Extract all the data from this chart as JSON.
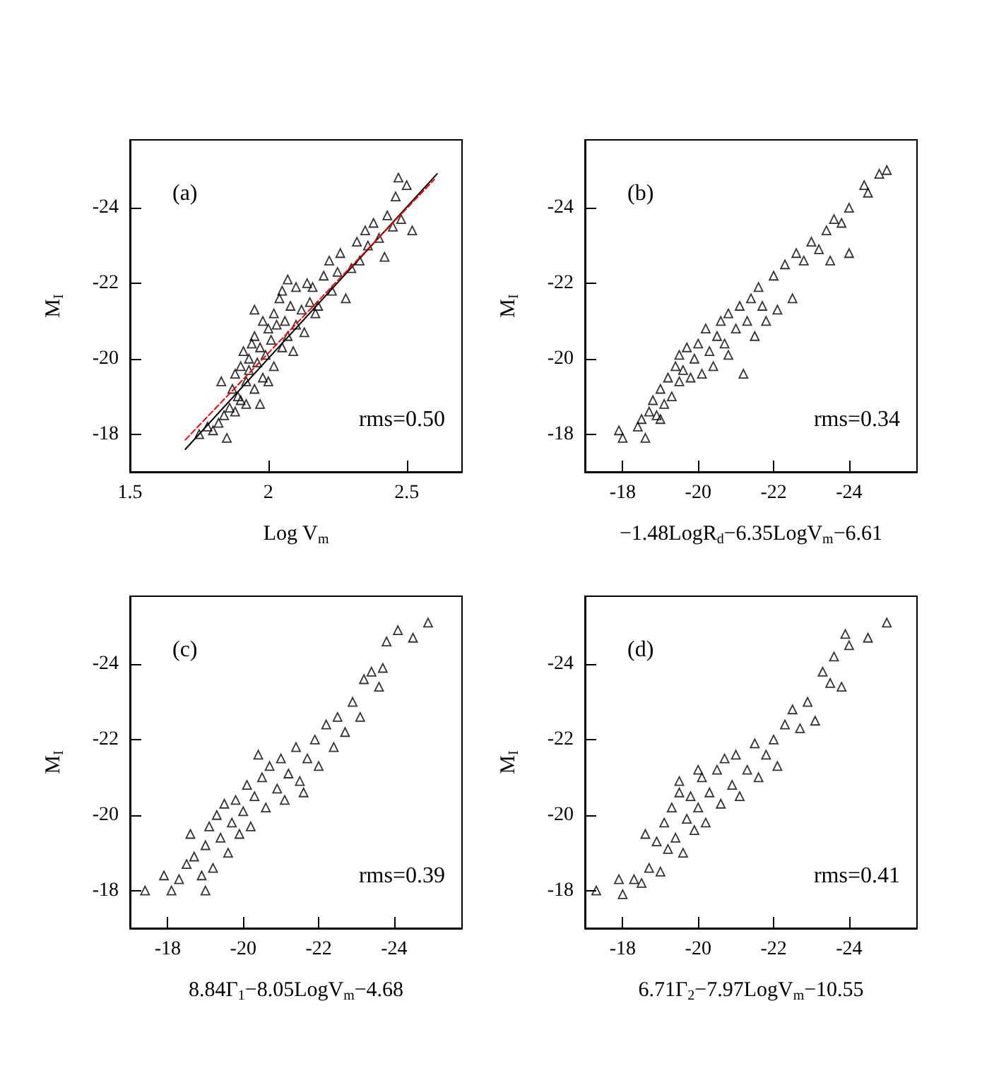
{
  "chart_data": [
    {
      "type": "scatter",
      "xlabel": "Log V$_{m}$",
      "ylabel": "M$_{I}$",
      "xlim": [
        1.5,
        2.7
      ],
      "xticks": [
        1.5,
        2,
        2.5
      ],
      "ylim": [
        -17,
        -25.8
      ],
      "yticks": [
        -18,
        -20,
        -22,
        -24
      ],
      "marker": "triangle",
      "annotations": [
        "(a)",
        "rms=0.50"
      ],
      "series": [
        {
          "color": "#000000",
          "x": [
            1.75,
            1.78,
            1.8,
            1.82,
            1.84,
            1.85,
            1.86,
            1.87,
            1.88,
            1.88,
            1.89,
            1.9,
            1.9,
            1.91,
            1.92,
            1.92,
            1.93,
            1.93,
            1.94,
            1.95,
            1.95,
            1.96,
            1.97,
            1.97,
            1.98,
            1.98,
            1.99,
            2.0,
            2.0,
            2.01,
            2.02,
            2.02,
            2.03,
            2.04,
            2.05,
            2.05,
            2.06,
            2.07,
            2.08,
            2.09,
            2.1,
            2.1,
            2.12,
            2.13,
            2.14,
            2.15,
            2.16,
            2.17,
            2.18,
            2.2,
            2.22,
            2.23,
            2.25,
            2.26,
            2.28,
            2.3,
            2.32,
            2.33,
            2.35,
            2.36,
            2.38,
            2.4,
            2.42,
            2.43,
            2.45,
            2.46,
            2.48,
            2.47,
            2.5,
            2.52,
            1.83,
            1.95,
            2.07
          ],
          "values": [
            -18.0,
            -18.2,
            -18.1,
            -18.3,
            -18.5,
            -17.9,
            -18.7,
            -19.2,
            -18.6,
            -19.6,
            -19.0,
            -19.8,
            -18.9,
            -20.2,
            -19.4,
            -18.8,
            -20.0,
            -19.7,
            -20.4,
            -19.2,
            -20.6,
            -19.9,
            -18.8,
            -20.3,
            -19.5,
            -21.0,
            -20.1,
            -19.4,
            -20.8,
            -20.5,
            -21.2,
            -19.8,
            -20.9,
            -21.6,
            -20.3,
            -21.8,
            -21.0,
            -20.6,
            -21.4,
            -20.2,
            -21.9,
            -20.9,
            -21.3,
            -20.7,
            -22.0,
            -21.5,
            -21.9,
            -21.2,
            -21.4,
            -22.2,
            -22.6,
            -21.8,
            -22.3,
            -22.8,
            -21.6,
            -22.4,
            -23.1,
            -22.6,
            -23.4,
            -23.0,
            -23.6,
            -23.2,
            -22.7,
            -23.8,
            -23.5,
            -24.3,
            -23.7,
            -24.8,
            -24.6,
            -23.4,
            -19.4,
            -21.3,
            -22.1
          ]
        },
        {
          "type": "line",
          "color": "#000000",
          "marker": "none",
          "line_style": "solid",
          "x": [
            1.7,
            2.61
          ],
          "values": [
            -17.6,
            -24.9
          ]
        },
        {
          "type": "line",
          "color": "#ff0000",
          "marker": "none",
          "line_style": "dashed",
          "x": [
            1.7,
            2.6
          ],
          "values": [
            -17.85,
            -24.75
          ]
        }
      ]
    },
    {
      "type": "scatter",
      "xlabel": "−1.48LogR$_{d}$−6.35LogV$_{m}$−6.61",
      "ylabel": "M$_{I}$",
      "xlim": [
        -17,
        -25.8
      ],
      "xticks": [
        -18,
        -20,
        -22,
        -24
      ],
      "ylim": [
        -17,
        -25.8
      ],
      "yticks": [
        -18,
        -20,
        -22,
        -24
      ],
      "marker": "triangle",
      "annotations": [
        "(b)",
        "rms=0.34"
      ],
      "series": [
        {
          "color": "#000000",
          "x": [
            -17.9,
            -18.0,
            -18.4,
            -18.5,
            -18.6,
            -18.7,
            -18.8,
            -18.9,
            -19.0,
            -19.1,
            -19.2,
            -19.3,
            -19.4,
            -19.5,
            -19.5,
            -19.6,
            -19.7,
            -19.8,
            -19.9,
            -20.0,
            -20.1,
            -20.2,
            -20.3,
            -20.4,
            -20.5,
            -20.6,
            -20.7,
            -20.8,
            -21.0,
            -21.1,
            -21.2,
            -21.3,
            -21.4,
            -21.5,
            -21.6,
            -21.7,
            -21.8,
            -22.0,
            -22.1,
            -22.3,
            -22.5,
            -22.6,
            -22.8,
            -23.0,
            -23.2,
            -23.4,
            -23.5,
            -23.6,
            -23.8,
            -24.0,
            -24.0,
            -24.4,
            -24.5,
            -24.8,
            -25.0,
            -19.0,
            -20.8
          ],
          "values": [
            -18.1,
            -17.9,
            -18.2,
            -18.4,
            -17.9,
            -18.6,
            -18.9,
            -18.5,
            -19.2,
            -18.8,
            -19.5,
            -19.0,
            -19.8,
            -19.4,
            -20.1,
            -19.7,
            -20.3,
            -19.5,
            -20.0,
            -20.4,
            -19.6,
            -20.8,
            -20.2,
            -19.8,
            -20.6,
            -21.0,
            -20.4,
            -21.2,
            -20.8,
            -21.4,
            -19.6,
            -21.0,
            -21.6,
            -20.6,
            -21.9,
            -21.4,
            -21.0,
            -22.2,
            -21.3,
            -22.5,
            -21.6,
            -22.8,
            -22.6,
            -23.1,
            -22.9,
            -23.4,
            -22.6,
            -23.7,
            -23.6,
            -22.8,
            -24.0,
            -24.6,
            -24.4,
            -24.9,
            -25.0,
            -18.4,
            -20.1
          ]
        }
      ]
    },
    {
      "type": "scatter",
      "xlabel": "8.84Γ$_{1}$−8.05LogV$_{m}$−4.68",
      "ylabel": "M$_{I}$",
      "xlim": [
        -17,
        -25.8
      ],
      "xticks": [
        -18,
        -20,
        -22,
        -24
      ],
      "ylim": [
        -17,
        -25.8
      ],
      "yticks": [
        -18,
        -20,
        -22,
        -24
      ],
      "marker": "triangle",
      "annotations": [
        "(c)",
        "rms=0.39"
      ],
      "series": [
        {
          "color": "#000000",
          "x": [
            -17.4,
            -17.9,
            -18.1,
            -18.3,
            -18.5,
            -18.6,
            -18.7,
            -18.9,
            -19.0,
            -19.1,
            -19.2,
            -19.3,
            -19.4,
            -19.5,
            -19.6,
            -19.7,
            -19.8,
            -19.9,
            -20.0,
            -20.1,
            -20.2,
            -20.3,
            -20.5,
            -20.6,
            -20.7,
            -20.9,
            -21.0,
            -21.1,
            -21.2,
            -21.4,
            -21.5,
            -21.7,
            -21.9,
            -22.0,
            -22.2,
            -22.4,
            -22.5,
            -22.7,
            -22.9,
            -23.1,
            -23.2,
            -23.4,
            -23.6,
            -23.7,
            -23.8,
            -24.1,
            -24.5,
            -24.9,
            -21.6,
            -20.4,
            -19.0
          ],
          "values": [
            -18.0,
            -18.4,
            -18.0,
            -18.3,
            -18.7,
            -19.5,
            -18.9,
            -18.4,
            -19.2,
            -19.7,
            -18.6,
            -20.0,
            -19.4,
            -20.3,
            -19.0,
            -19.8,
            -20.4,
            -19.5,
            -20.1,
            -20.8,
            -19.7,
            -20.5,
            -21.0,
            -20.2,
            -21.3,
            -20.7,
            -21.5,
            -20.4,
            -21.1,
            -21.8,
            -20.9,
            -21.5,
            -22.0,
            -21.3,
            -22.4,
            -21.8,
            -22.6,
            -22.2,
            -23.0,
            -22.6,
            -23.6,
            -23.8,
            -23.4,
            -23.9,
            -24.6,
            -24.9,
            -24.7,
            -25.1,
            -20.6,
            -21.6,
            -18.0
          ]
        }
      ]
    },
    {
      "type": "scatter",
      "xlabel": "6.71Γ$_{2}$−7.97LogV$_{m}$−10.55",
      "ylabel": "M$_{I}$",
      "xlim": [
        -17,
        -25.8
      ],
      "xticks": [
        -18,
        -20,
        -22,
        -24
      ],
      "ylim": [
        -17,
        -25.8
      ],
      "yticks": [
        -18,
        -20,
        -22,
        -24
      ],
      "marker": "triangle",
      "annotations": [
        "(d)",
        "rms=0.41"
      ],
      "series": [
        {
          "color": "#000000",
          "x": [
            -17.3,
            -17.9,
            -18.0,
            -18.3,
            -18.5,
            -18.6,
            -18.7,
            -18.9,
            -19.0,
            -19.1,
            -19.2,
            -19.3,
            -19.4,
            -19.5,
            -19.6,
            -19.7,
            -19.8,
            -19.9,
            -20.0,
            -20.1,
            -20.2,
            -20.3,
            -20.5,
            -20.6,
            -20.7,
            -20.9,
            -21.0,
            -21.1,
            -21.3,
            -21.5,
            -21.6,
            -21.8,
            -22.0,
            -22.1,
            -22.3,
            -22.5,
            -22.7,
            -22.9,
            -23.1,
            -23.3,
            -23.5,
            -23.6,
            -23.8,
            -23.9,
            -24.0,
            -24.5,
            -25.0,
            -20.0,
            -19.5
          ],
          "values": [
            -18.0,
            -18.3,
            -17.9,
            -18.3,
            -18.2,
            -19.5,
            -18.6,
            -19.3,
            -18.5,
            -19.8,
            -19.1,
            -20.2,
            -19.4,
            -20.6,
            -19.0,
            -19.9,
            -20.5,
            -19.6,
            -20.2,
            -21.0,
            -19.8,
            -20.6,
            -21.2,
            -20.3,
            -21.5,
            -20.8,
            -21.6,
            -20.5,
            -21.2,
            -21.9,
            -21.0,
            -21.6,
            -22.0,
            -21.3,
            -22.4,
            -22.8,
            -22.3,
            -23.0,
            -22.5,
            -23.8,
            -23.5,
            -24.2,
            -23.4,
            -24.8,
            -24.5,
            -24.7,
            -25.1,
            -21.2,
            -20.9
          ]
        }
      ]
    }
  ]
}
